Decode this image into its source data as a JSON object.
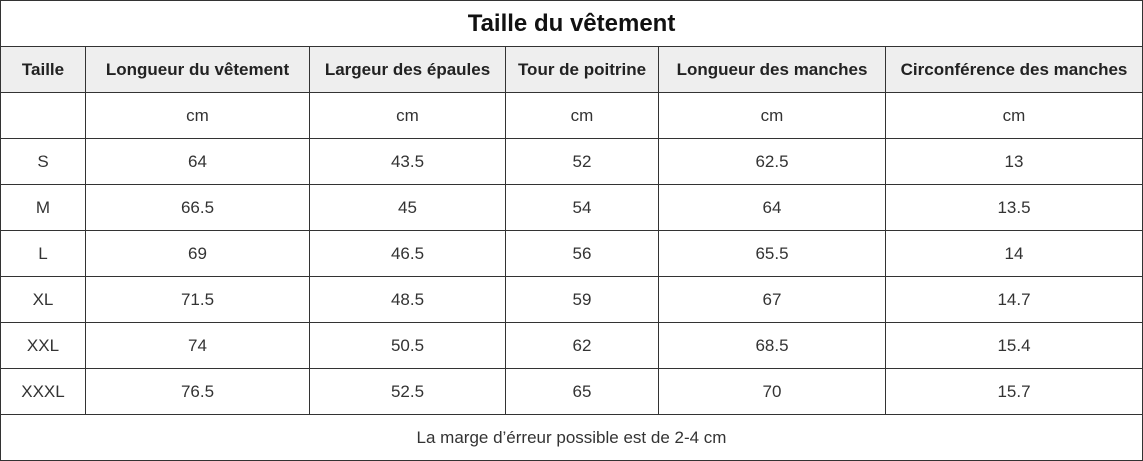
{
  "title": "Taille du vêtement",
  "columns": [
    "Taille",
    "Longueur du vêtement",
    "Largeur des épaules",
    "Tour de poitrine",
    "Longueur des manches",
    "Circonférence des manches"
  ],
  "units": [
    "",
    "cm",
    "cm",
    "cm",
    "cm",
    "cm"
  ],
  "rows": [
    [
      "S",
      "64",
      "43.5",
      "52",
      "62.5",
      "13"
    ],
    [
      "M",
      "66.5",
      "45",
      "54",
      "64",
      "13.5"
    ],
    [
      "L",
      "69",
      "46.5",
      "56",
      "65.5",
      "14"
    ],
    [
      "XL",
      "71.5",
      "48.5",
      "59",
      "67",
      "14.7"
    ],
    [
      "XXL",
      "74",
      "50.5",
      "62",
      "68.5",
      "15.4"
    ],
    [
      "XXXL",
      "76.5",
      "52.5",
      "65",
      "70",
      "15.7"
    ]
  ],
  "note": "La marge d’érreur possible est de 2-4 cm",
  "colors": {
    "header_background": "#eeeeee",
    "border": "#333333"
  }
}
